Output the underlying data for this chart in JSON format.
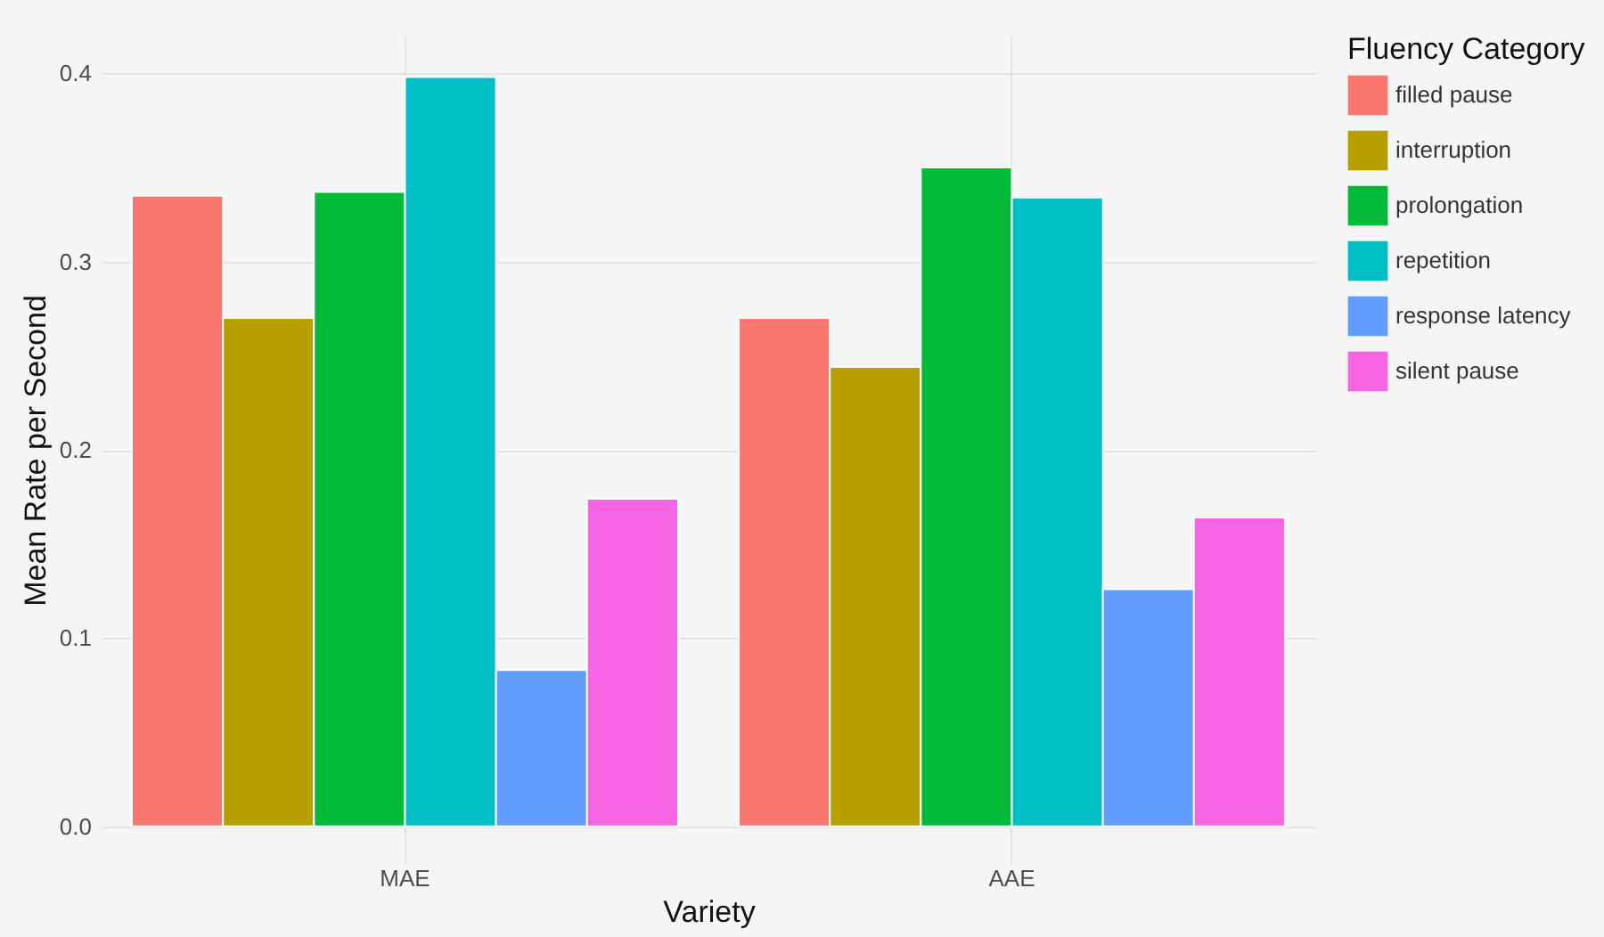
{
  "chart_data": {
    "type": "bar",
    "xlabel": "Variety",
    "ylabel": "Mean Rate per Second",
    "legend_title": "Fluency Category",
    "categories": [
      "MAE",
      "AAE"
    ],
    "series": [
      {
        "name": "filled pause",
        "color": "#f8766d",
        "values": [
          0.335,
          0.27
        ]
      },
      {
        "name": "interruption",
        "color": "#b79f00",
        "values": [
          0.27,
          0.244
        ]
      },
      {
        "name": "prolongation",
        "color": "#00ba38",
        "values": [
          0.337,
          0.35
        ]
      },
      {
        "name": "repetition",
        "color": "#00bfc4",
        "values": [
          0.398,
          0.334
        ]
      },
      {
        "name": "response latency",
        "color": "#619cff",
        "values": [
          0.083,
          0.126
        ]
      },
      {
        "name": "silent pause",
        "color": "#f564e3",
        "values": [
          0.174,
          0.164
        ]
      }
    ],
    "ylim": [
      -0.02,
      0.42
    ],
    "yticks": [
      {
        "value": 0,
        "label": "0.0"
      },
      0.1,
      0.2,
      0.3,
      0.4
    ],
    "grid": true,
    "legend": "right"
  }
}
